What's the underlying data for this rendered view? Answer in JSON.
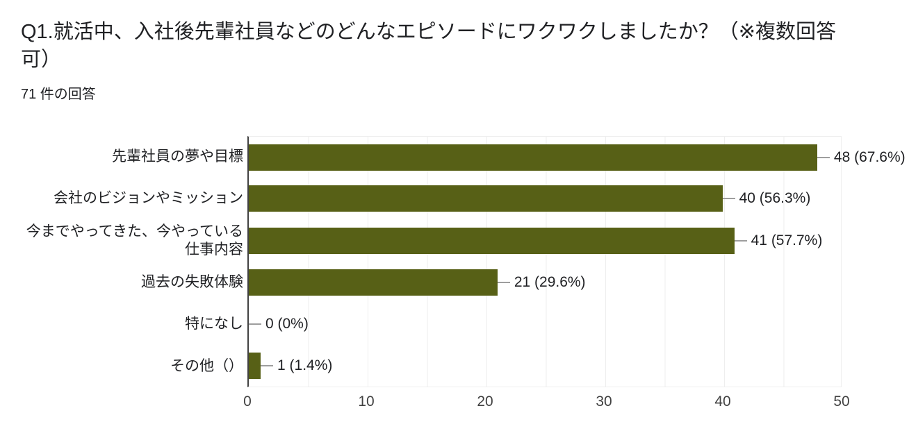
{
  "header": {
    "title": "Q1.就活中、入社後先輩社員などのどんなエピソードにワクワクしましたか？（※複数回答可）",
    "response_count": "71 件の回答"
  },
  "chart_data": {
    "type": "bar",
    "orientation": "horizontal",
    "title": "Q1.就活中、入社後先輩社員などのどんなエピソードにワクワクしましたか？（※複数回答可）",
    "total_responses": 71,
    "categories": [
      "先輩社員の夢や目標",
      "会社のビジョンやミッション",
      "今までやってきた、今やっている仕事内容",
      "過去の失敗体験",
      "特になし",
      "その他（）"
    ],
    "values": [
      48,
      40,
      41,
      21,
      0,
      1
    ],
    "percentages": [
      67.6,
      56.3,
      57.7,
      29.6,
      0,
      1.4
    ],
    "value_labels": [
      "48 (67.6%)",
      "40 (56.3%)",
      "41 (57.7%)",
      "21 (29.6%)",
      "0 (0%)",
      "1 (1.4%)"
    ],
    "x_ticks": [
      "0",
      "10",
      "20",
      "30",
      "40",
      "50"
    ],
    "xlim": [
      0,
      50
    ],
    "grid_step": 5,
    "xlabel": "",
    "ylabel": "",
    "legend": "none",
    "grid": "vertical-only"
  },
  "colors": {
    "bar": "#576016",
    "axis_line": "#424242",
    "gridline": "#eeeeee",
    "connector": "#9e9e9e",
    "text_primary": "#202124",
    "tick_text": "#424242",
    "background": "#ffffff"
  }
}
